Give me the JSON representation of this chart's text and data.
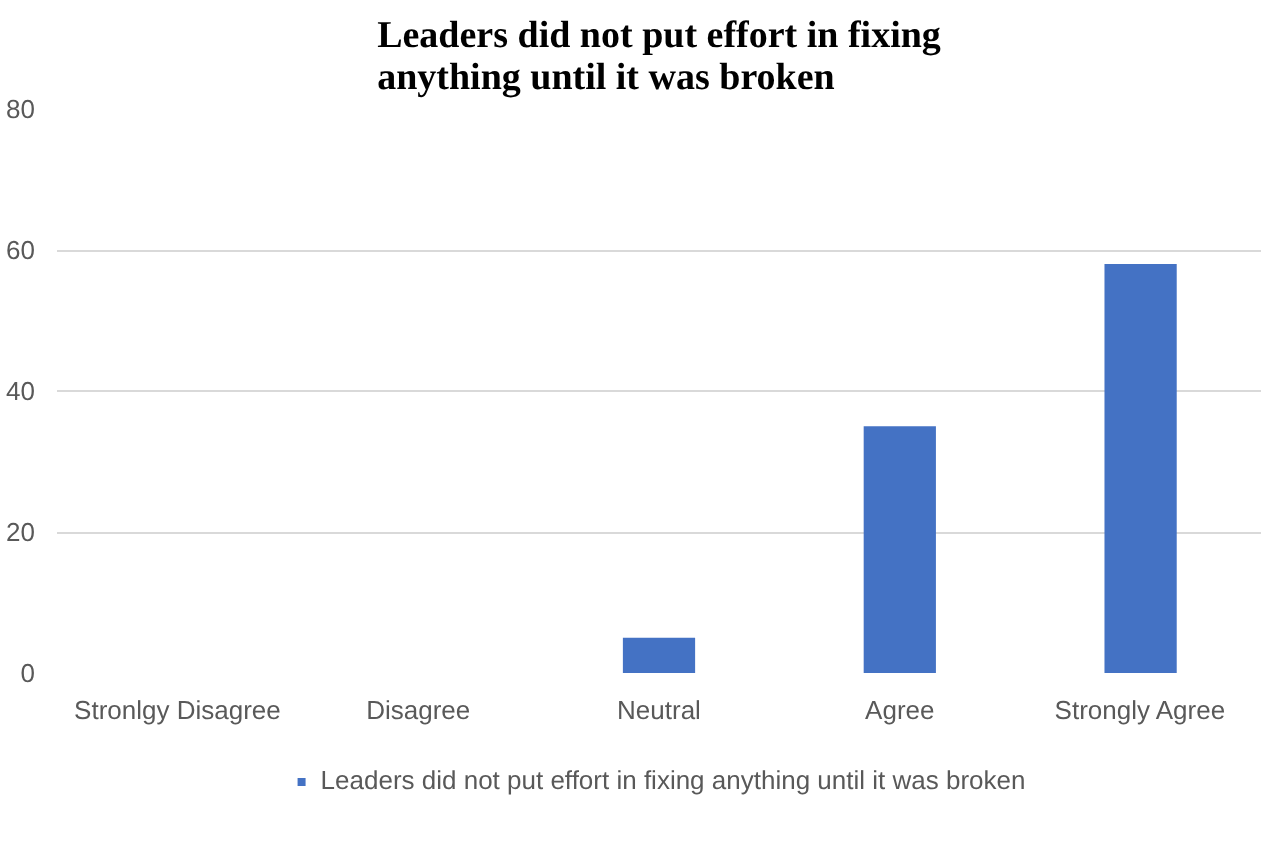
{
  "chart_data": {
    "type": "bar",
    "title": "Leaders did not put effort in fixing anything until it was broken",
    "categories": [
      "Stronlgy Disagree",
      "Disagree",
      "Neutral",
      "Agree",
      "Strongly Agree"
    ],
    "series": [
      {
        "name": "Leaders did not put effort in fixing anything until it was broken",
        "color": "#4472c4",
        "values": [
          0,
          0,
          5,
          35,
          58
        ]
      }
    ],
    "ylim": [
      0,
      80
    ],
    "yticks": [
      0,
      20,
      40,
      60,
      80
    ],
    "grid": "y",
    "legend": "bottom"
  }
}
